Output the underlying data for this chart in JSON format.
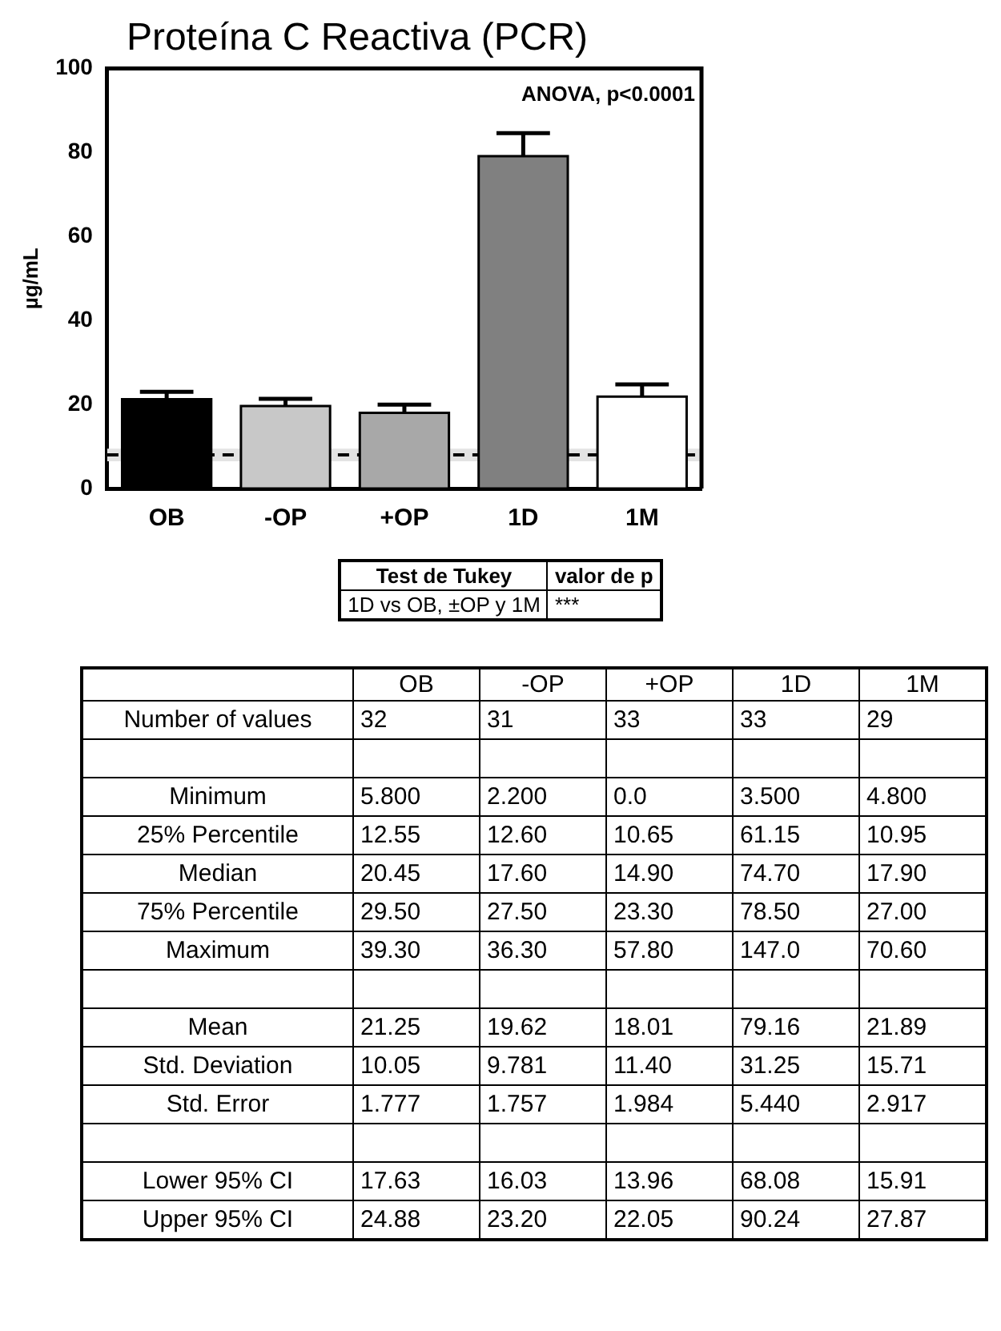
{
  "chart_data": [
    {
      "type": "bar",
      "title": "Proteína C Reactiva (PCR)",
      "ylabel": "µg/mL",
      "categories": [
        "OB",
        "-OP",
        "+OP",
        "1D",
        "1M"
      ],
      "values": [
        21.25,
        19.62,
        18.01,
        79.16,
        21.89
      ],
      "errors": [
        [
          21.25,
          23.03
        ],
        [
          19.62,
          21.38
        ],
        [
          18.01,
          19.99
        ],
        [
          79.16,
          84.6
        ],
        [
          21.89,
          24.81
        ]
      ],
      "colors": [
        "#000000",
        "#c8c8c8",
        "#a8a8a8",
        "#808080",
        "#ffffff"
      ],
      "ylim": [
        0,
        100
      ],
      "yticks": [
        0,
        20,
        40,
        60,
        80,
        100
      ],
      "grid": false,
      "legend": false,
      "ref_lines": [
        {
          "axis": "y",
          "value": 8,
          "line_style": "dashed",
          "color": "#000000"
        }
      ],
      "bands": [
        {
          "axis": "y",
          "from": 6.5,
          "to": 9.5,
          "color": "#e3e3e3"
        }
      ],
      "annotations": [
        "ANOVA, p<0.0001"
      ]
    },
    {
      "type": "other",
      "categories": [
        "Test de Tukey",
        "valor de p"
      ],
      "y_categories": [
        "1D vs OB, ±OP y 1M"
      ],
      "cell_labels": [
        [
          "***"
        ]
      ]
    },
    {
      "type": "other",
      "categories": [
        "OB",
        "-OP",
        "+OP",
        "1D",
        "1M"
      ],
      "y_categories": [
        "Number of values",
        null,
        "Minimum",
        "25% Percentile",
        "Median",
        "75% Percentile",
        "Maximum",
        null,
        "Mean",
        "Std. Deviation",
        "Std. Error",
        null,
        "Lower 95% CI",
        "Upper 95% CI"
      ],
      "cell_labels": [
        [
          "32",
          "31",
          "33",
          "33",
          "29"
        ],
        [
          null,
          null,
          null,
          null,
          null
        ],
        [
          "5.800",
          "2.200",
          "0.0",
          "3.500",
          "4.800"
        ],
        [
          "12.55",
          "12.60",
          "10.65",
          "61.15",
          "10.95"
        ],
        [
          "20.45",
          "17.60",
          "14.90",
          "74.70",
          "17.90"
        ],
        [
          "29.50",
          "27.50",
          "23.30",
          "78.50",
          "27.00"
        ],
        [
          "39.30",
          "36.30",
          "57.80",
          "147.0",
          "70.60"
        ],
        [
          null,
          null,
          null,
          null,
          null
        ],
        [
          "21.25",
          "19.62",
          "18.01",
          "79.16",
          "21.89"
        ],
        [
          "10.05",
          "9.781",
          "11.40",
          "31.25",
          "15.71"
        ],
        [
          "1.777",
          "1.757",
          "1.984",
          "5.440",
          "2.917"
        ],
        [
          null,
          null,
          null,
          null,
          null
        ],
        [
          "17.63",
          "16.03",
          "13.96",
          "68.08",
          "15.91"
        ],
        [
          "24.88",
          "23.20",
          "22.05",
          "90.24",
          "27.87"
        ]
      ]
    }
  ]
}
